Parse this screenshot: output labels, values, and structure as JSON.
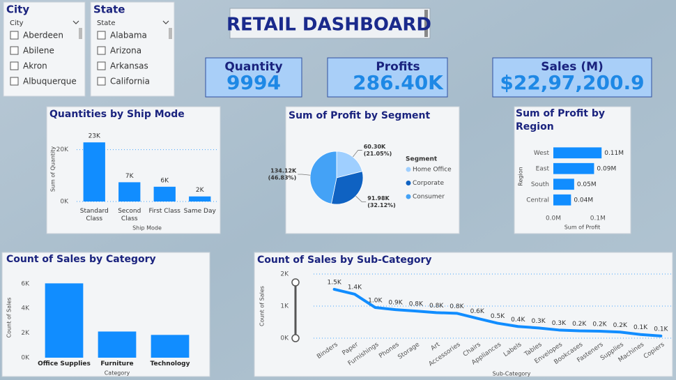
{
  "title": "RETAIL DASHBOARD",
  "slicers": [
    {
      "title": "City",
      "header": "City",
      "items": [
        "Aberdeen",
        "Abilene",
        "Akron",
        "Albuquerque"
      ]
    },
    {
      "title": "State",
      "header": "State",
      "items": [
        "Alabama",
        "Arizona",
        "Arkansas",
        "California"
      ]
    }
  ],
  "cards": [
    {
      "label": "Quantity",
      "value": "9994"
    },
    {
      "label": "Profits",
      "value": "286.40K"
    },
    {
      "label": "Sales (M)",
      "value": "$22,97,200.9"
    }
  ],
  "chart_data": [
    {
      "type": "bar",
      "title": "Quantities by Ship Mode",
      "categories": [
        "Standard Class",
        "Second Class",
        "First Class",
        "Same Day"
      ],
      "values": [
        22797,
        7423,
        5693,
        1960
      ],
      "value_labels": [
        "23K",
        "7K",
        "6K",
        "2K"
      ],
      "color": "#118dff",
      "xlabel": "Ship Mode",
      "ylabel": "Sum of Quantity",
      "ylim": [
        0,
        25000
      ],
      "yticks": [
        {
          "value": 0,
          "label": "0K"
        },
        {
          "value": 20000,
          "label": "20K"
        }
      ],
      "grid": true
    },
    {
      "type": "pie",
      "title": "Sum of Profit by Segment",
      "categories": [
        "Home Office",
        "Corporate",
        "Consumer"
      ],
      "values": [
        60300,
        91980,
        134120
      ],
      "value_labels": [
        "60.30K",
        "91.98K",
        "134.12K"
      ],
      "percent_labels": [
        "(21.05%)",
        "(32.12%)",
        "(46.83%)"
      ],
      "colors": [
        "#9fcfff",
        "#0f62c2",
        "#44a2f6"
      ],
      "legend_title": "Segment"
    },
    {
      "type": "bar",
      "orientation": "horizontal",
      "title": "Sum of Profit by Region",
      "categories": [
        "West",
        "East",
        "South",
        "Central"
      ],
      "values": [
        108418,
        91522,
        46749,
        39706
      ],
      "value_labels": [
        "0.11M",
        "0.09M",
        "0.05M",
        "0.04M"
      ],
      "color": "#118dff",
      "xlabel": "Sum of Profit",
      "ylabel": "Region",
      "xlim": [
        0,
        130000
      ],
      "xticks": [
        {
          "value": 0,
          "label": "0.0M"
        },
        {
          "value": 100000,
          "label": "0.1M"
        }
      ]
    },
    {
      "type": "bar",
      "title": "Count of Sales by Category",
      "categories": [
        "Office Supplies",
        "Furniture",
        "Technology"
      ],
      "values": [
        6026,
        2121,
        1847
      ],
      "color": "#118dff",
      "xlabel": "Category",
      "ylabel": "Count of Sales",
      "ylim": [
        0,
        6500
      ],
      "yticks": [
        {
          "value": 0,
          "label": "0K"
        },
        {
          "value": 2000,
          "label": "2K"
        },
        {
          "value": 4000,
          "label": "4K"
        },
        {
          "value": 6000,
          "label": "6K"
        }
      ],
      "grid": false
    },
    {
      "type": "line",
      "title": "Count of Sales by Sub-Category",
      "categories": [
        "Binders",
        "Paper",
        "Furnishings",
        "Phones",
        "Storage",
        "Art",
        "Accessories",
        "Chairs",
        "Appliances",
        "Labels",
        "Tables",
        "Envelopes",
        "Bookcases",
        "Fasteners",
        "Supplies",
        "Machines",
        "Copiers"
      ],
      "values": [
        1523,
        1370,
        957,
        889,
        846,
        796,
        775,
        617,
        466,
        364,
        319,
        254,
        228,
        217,
        190,
        115,
        68
      ],
      "value_labels": [
        "1.5K",
        "1.4K",
        "1.0K",
        "0.9K",
        "0.8K",
        "0.8K",
        "0.8K",
        "0.6K",
        "0.5K",
        "0.4K",
        "0.3K",
        "0.3K",
        "0.2K",
        "0.2K",
        "0.2K",
        "0.1K",
        "0.1K"
      ],
      "color": "#118dff",
      "xlabel": "Sub-Category",
      "ylabel": "Count of Sales",
      "ylim": [
        0,
        2000
      ],
      "yticks": [
        {
          "value": 0,
          "label": "0K"
        },
        {
          "value": 1000,
          "label": "1K"
        },
        {
          "value": 2000,
          "label": "2K"
        }
      ],
      "grid": true
    }
  ]
}
